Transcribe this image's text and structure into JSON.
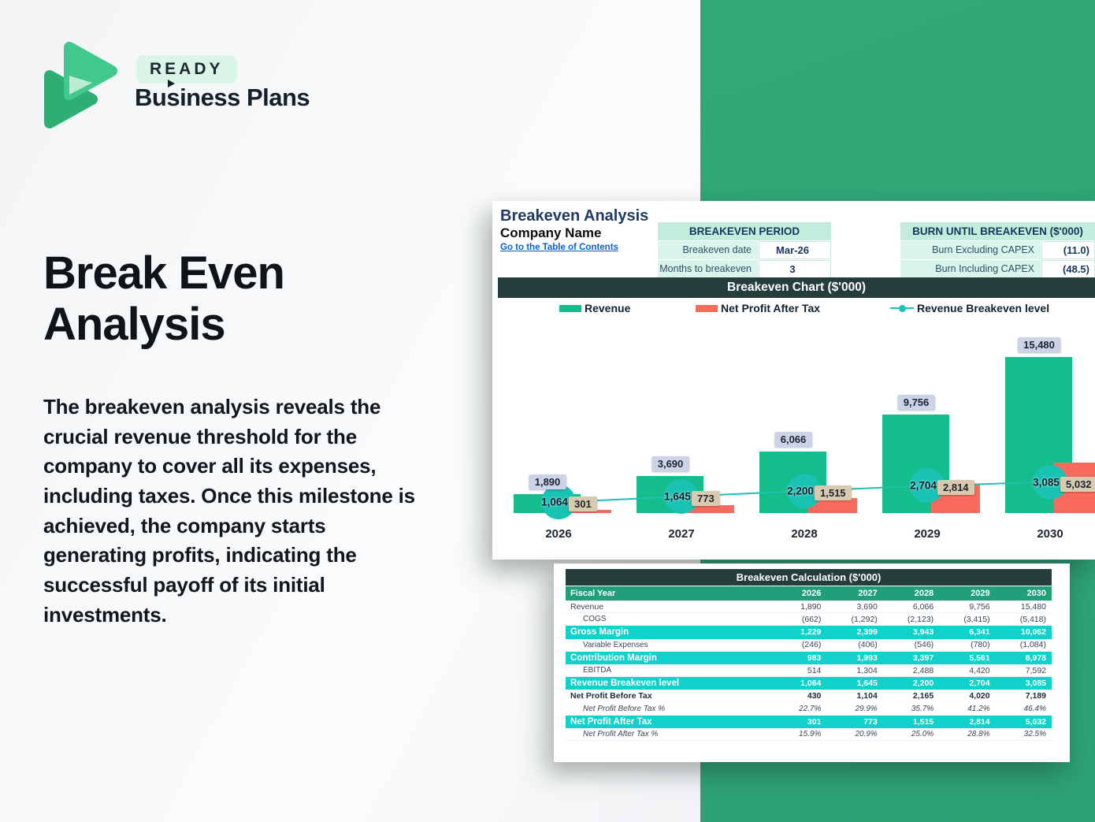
{
  "brand": {
    "badge": "READY",
    "name": "Business Plans"
  },
  "hero": {
    "title_line1": "Break Even",
    "title_line2": "Analysis",
    "paragraph": "The breakeven analysis reveals the crucial revenue threshold for the company to cover all its expenses, including taxes. Once this milestone is achieved, the company starts generating profits, indicating the successful payoff of its initial investments."
  },
  "sheet": {
    "title": "Breakeven Analysis",
    "company": "Company Name",
    "link": "Go to the Table of Contents",
    "period_table": {
      "header": "BREAKEVEN PERIOD",
      "rows": [
        {
          "label": "Breakeven date",
          "value": "Mar-26"
        },
        {
          "label": "Months to breakeven",
          "value": "3"
        }
      ]
    },
    "burn_table": {
      "header": "BURN UNTIL BREAKEVEN ($'000)",
      "rows": [
        {
          "label": "Burn Excluding CAPEX",
          "value": "(11.0)"
        },
        {
          "label": "Burn Including CAPEX",
          "value": "(48.5)"
        }
      ]
    }
  },
  "chart_data": {
    "type": "bar",
    "title": "Breakeven Chart ($'000)",
    "categories": [
      "2026",
      "2027",
      "2028",
      "2029",
      "2030"
    ],
    "series": [
      {
        "name": "Revenue",
        "type": "bar",
        "values": [
          1890,
          3690,
          6066,
          9756,
          15480
        ],
        "labels": [
          "1,890",
          "3,690",
          "6,066",
          "9,756",
          "15,480"
        ]
      },
      {
        "name": "Net Profit After Tax",
        "type": "bar",
        "values": [
          301,
          773,
          1515,
          2814,
          5032
        ],
        "labels": [
          "301",
          "773",
          "1,515",
          "2,814",
          "5,032"
        ]
      },
      {
        "name": "Revenue Breakeven level",
        "type": "line",
        "values": [
          1064,
          1645,
          2200,
          2704,
          3085
        ],
        "labels": [
          "1,064",
          "1,645",
          "2,200",
          "2,704",
          "3,085"
        ]
      }
    ],
    "ylim": [
      0,
      16000
    ],
    "grid": false,
    "legend_position": "top"
  },
  "calc_table": {
    "title": "Breakeven Calculation ($'000)",
    "header": {
      "label": "Fiscal Year",
      "years": [
        "2026",
        "2027",
        "2028",
        "2029",
        "2030"
      ]
    },
    "rows": [
      {
        "label": "Revenue",
        "style": "plain",
        "values": [
          "1,890",
          "3,690",
          "6,066",
          "9,756",
          "15,480"
        ]
      },
      {
        "label": "COGS",
        "style": "indent",
        "values": [
          "(662)",
          "(1,292)",
          "(2,123)",
          "(3,415)",
          "(5,418)"
        ]
      },
      {
        "label": "Gross Margin",
        "style": "teal",
        "values": [
          "1,229",
          "2,399",
          "3,943",
          "6,341",
          "10,062"
        ]
      },
      {
        "label": "Variable Expenses",
        "style": "indent",
        "values": [
          "(246)",
          "(406)",
          "(546)",
          "(780)",
          "(1,084)"
        ]
      },
      {
        "label": "Contribution Margin",
        "style": "teal",
        "values": [
          "983",
          "1,993",
          "3,397",
          "5,561",
          "8,978"
        ]
      },
      {
        "label": "EBITDA",
        "style": "indent",
        "values": [
          "514",
          "1,304",
          "2,488",
          "4,420",
          "7,592"
        ]
      },
      {
        "label": "Revenue Breakeven level",
        "style": "teal",
        "values": [
          "1,064",
          "1,645",
          "2,200",
          "2,704",
          "3,085"
        ]
      },
      {
        "label": "Net Profit Before Tax",
        "style": "bold",
        "values": [
          "430",
          "1,104",
          "2,165",
          "4,020",
          "7,189"
        ]
      },
      {
        "label": "Net Profit Before Tax %",
        "style": "pct",
        "values": [
          "22.7%",
          "29.9%",
          "35.7%",
          "41.2%",
          "46.4%"
        ]
      },
      {
        "label": "Net Profit After Tax",
        "style": "teal",
        "values": [
          "301",
          "773",
          "1,515",
          "2,814",
          "5,032"
        ]
      },
      {
        "label": "Net Profit After Tax %",
        "style": "pct",
        "values": [
          "15.9%",
          "20.9%",
          "25.0%",
          "28.8%",
          "32.5%"
        ]
      }
    ]
  },
  "colors": {
    "brand_green": "#32a878",
    "logo_front_green": "#41c88d",
    "logo_back_green": "#2fae74",
    "logo_overlap_mint": "#bdecd4",
    "dark_header": "#253d3b",
    "table_header_green": "#1fa078",
    "highlight_teal": "#10d2ca",
    "revenue_bar": "#14bd8c",
    "net_profit_bar": "#f96a5e",
    "breakeven_line": "#1fc0af",
    "breakeven_marker": "#18c3b4",
    "revenue_label_chip": "#ccd3e8",
    "net_profit_label_chip": "#d8caae",
    "mint_header": "#c4ecdd",
    "mint_cell": "#d9f4ea",
    "link_blue": "#0c62c9",
    "title_navy": "#203a66"
  }
}
